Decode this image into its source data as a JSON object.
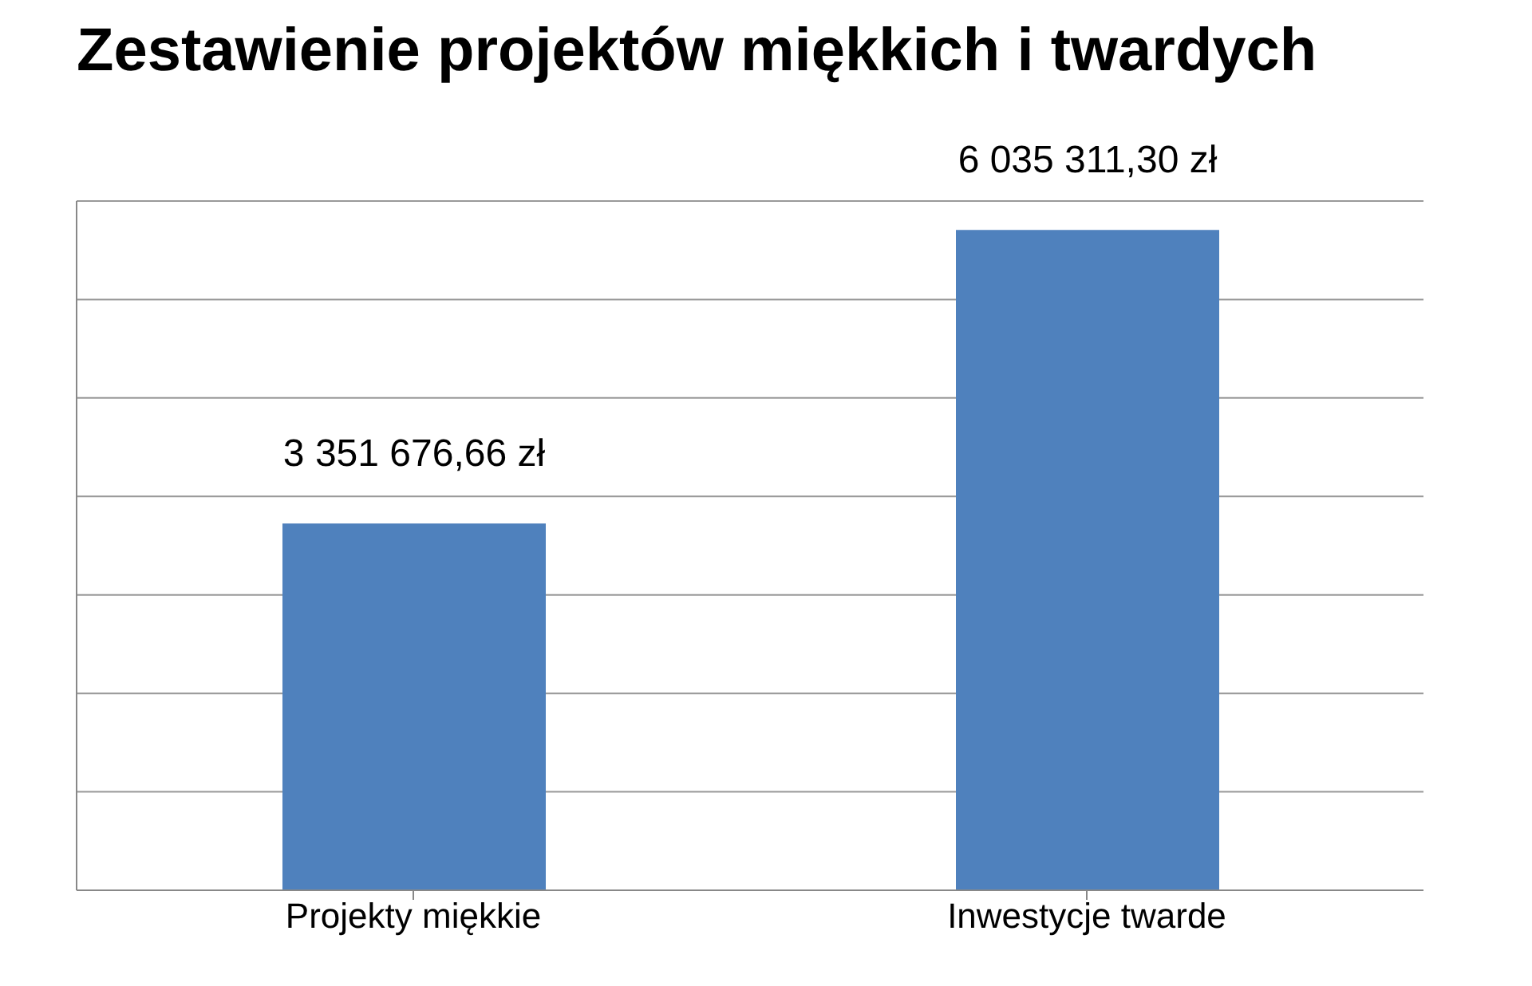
{
  "chart_data": {
    "type": "bar",
    "title": "Zestawienie projektów miękkich i twardych",
    "categories": [
      "Projekty miękkie",
      "Inwestycje twarde"
    ],
    "values": [
      3351676.66,
      6035311.3
    ],
    "value_labels": [
      "3 351 676,66 zł",
      "6  035 311,30 zł"
    ],
    "color": "#4f81bd",
    "grid": "y",
    "tick_labels": "x",
    "legend": false
  }
}
